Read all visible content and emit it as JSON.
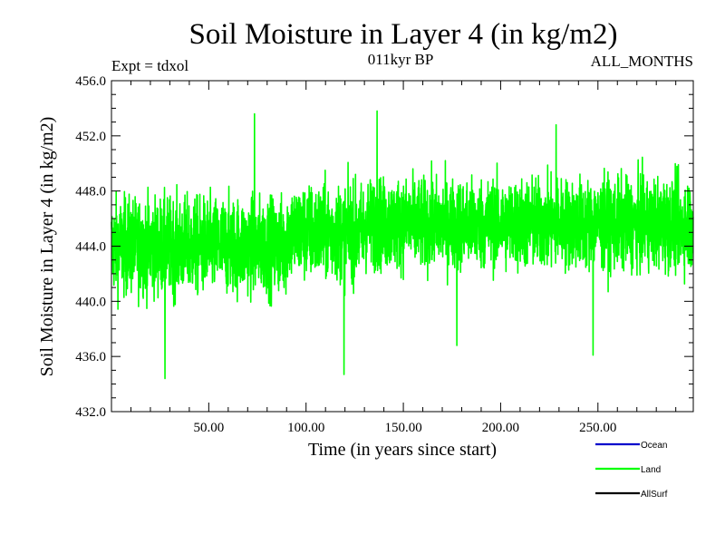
{
  "chart_data": {
    "type": "line",
    "title": "Soil Moisture in Layer 4 (in kg/m2)",
    "subtitle": "011kyr BP",
    "left_note": "Expt = tdxol",
    "right_note": "ALL_MONTHS",
    "xlabel": "Time (in years since start)",
    "ylabel": "Soil Moisture in Layer 4 (in kg/m2)",
    "xlim": [
      0.0,
      299.0
    ],
    "ylim": [
      432.0,
      456.0
    ],
    "xticks": [
      50.0,
      100.0,
      150.0,
      200.0,
      250.0
    ],
    "xtick_labels": [
      "50.00",
      "100.00",
      "150.00",
      "200.00",
      "250.00"
    ],
    "yticks": [
      432.0,
      436.0,
      440.0,
      444.0,
      448.0,
      452.0,
      456.0
    ],
    "ytick_labels": [
      "432.0",
      "436.0",
      "440.0",
      "444.0",
      "448.0",
      "452.0",
      "456.0"
    ],
    "legend_position": "bottom-right",
    "series": [
      {
        "name": "Ocean",
        "color": "#0000cc",
        "values": []
      },
      {
        "name": "Land",
        "color": "#00ff00",
        "mean_level": 445.0,
        "segments": [
          {
            "x_start": 0,
            "x_end": 90,
            "mean": 444.0,
            "spread": 3.2
          },
          {
            "x_start": 90,
            "x_end": 130,
            "mean": 445.0,
            "spread": 3.2
          },
          {
            "x_start": 130,
            "x_end": 299,
            "mean": 445.6,
            "spread": 3.0
          }
        ],
        "extremes": [
          {
            "x": 27.5,
            "y": 434.4
          },
          {
            "x": 119.5,
            "y": 434.7
          },
          {
            "x": 73.5,
            "y": 453.6
          },
          {
            "x": 136.5,
            "y": 453.8
          },
          {
            "x": 177.5,
            "y": 436.8
          },
          {
            "x": 247.5,
            "y": 436.1
          },
          {
            "x": 228.5,
            "y": 452.8
          }
        ]
      },
      {
        "name": "AllSurf",
        "color": "#000000",
        "values": []
      }
    ]
  }
}
